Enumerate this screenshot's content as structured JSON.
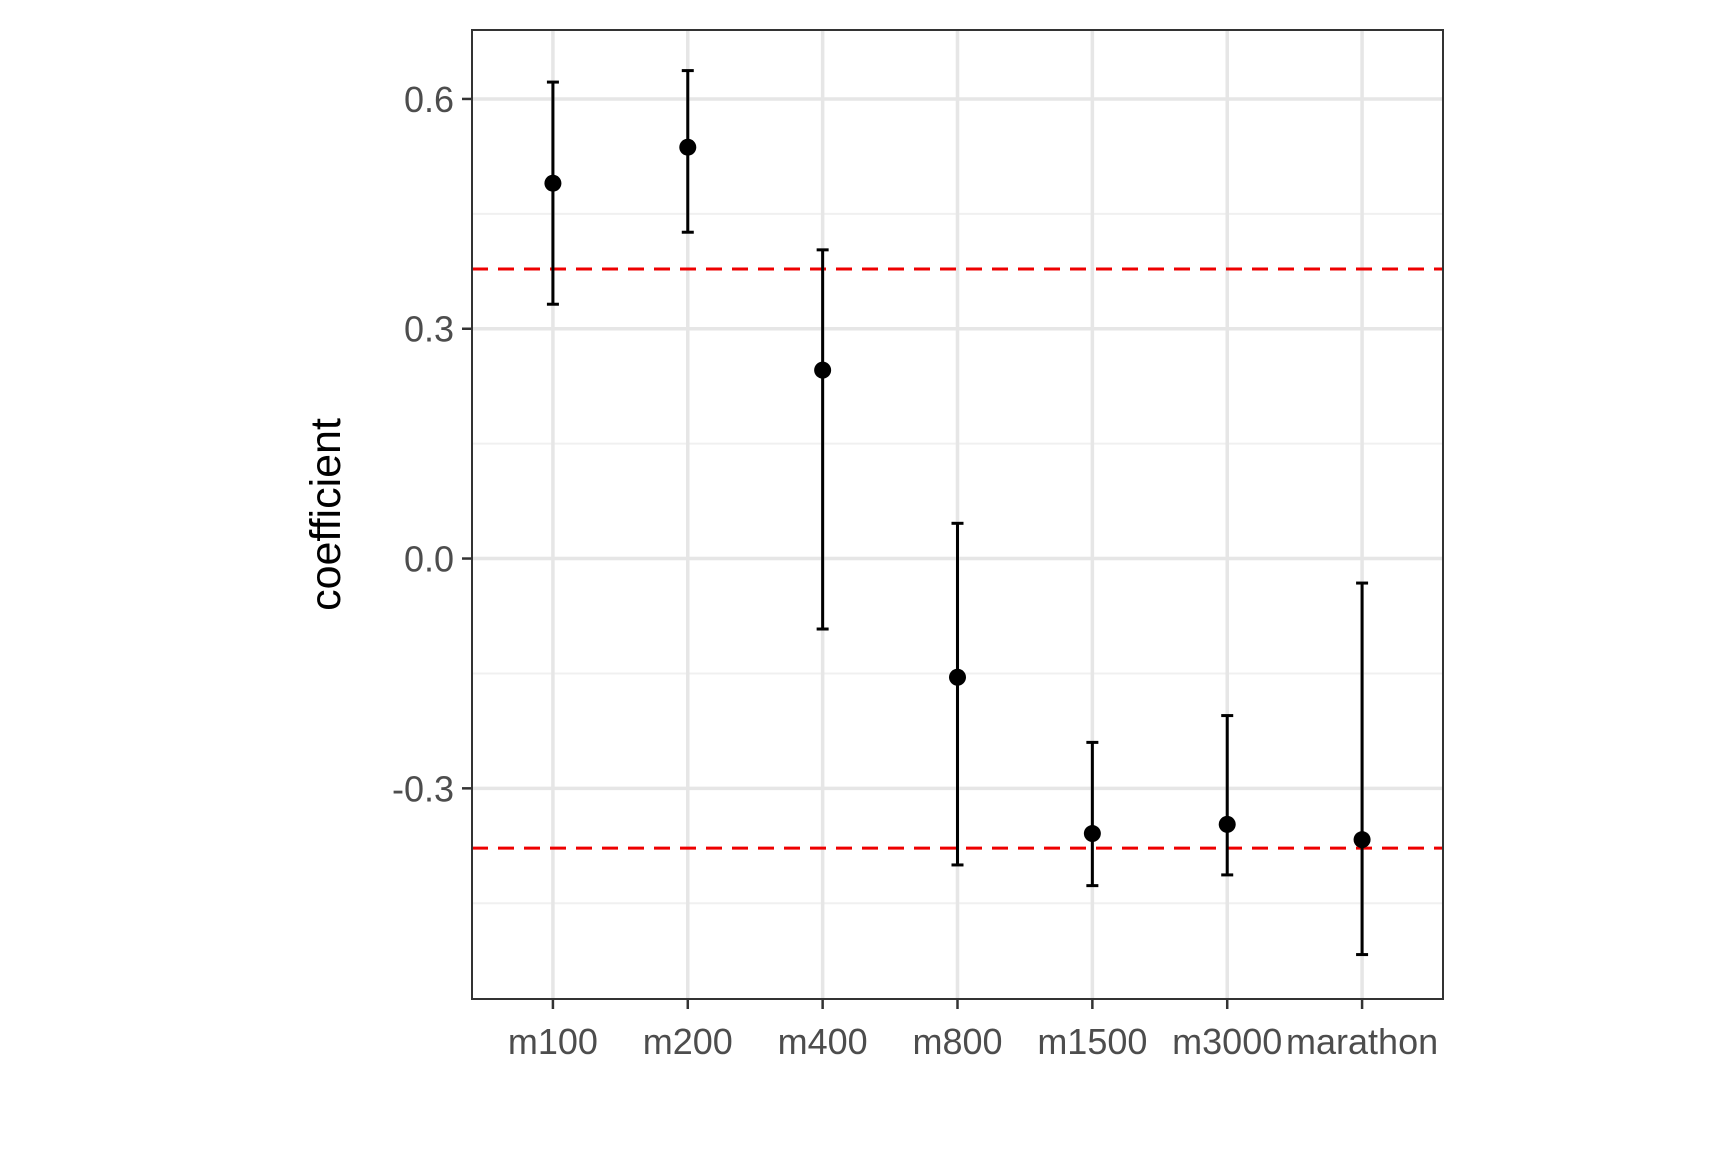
{
  "chart_data": {
    "type": "scatter",
    "subtype": "point-range",
    "title": "",
    "xlabel": "",
    "ylabel": "coefficient",
    "categories": [
      "m100",
      "m200",
      "m400",
      "m800",
      "m1500",
      "m3000",
      "marathon"
    ],
    "series": [
      {
        "estimate": [
          0.49,
          0.537,
          0.246,
          -0.155,
          -0.359,
          -0.347,
          -0.367
        ],
        "lower": [
          0.332,
          0.426,
          -0.092,
          -0.4,
          -0.427,
          -0.413,
          -0.517
        ],
        "upper": [
          0.622,
          0.637,
          0.403,
          0.046,
          -0.24,
          -0.205,
          -0.032
        ]
      }
    ],
    "reference_lines": [
      {
        "y": 0.378,
        "style": "dashed",
        "color": "#ee0000"
      },
      {
        "y": -0.378,
        "style": "dashed",
        "color": "#ee0000"
      }
    ],
    "ylim": [
      -0.575,
      0.69
    ],
    "yticks": [
      -0.3,
      0.0,
      0.3,
      0.6
    ],
    "ytick_labels": [
      "-0.3",
      "0.0",
      "0.3",
      "0.6"
    ],
    "grid": true,
    "theme": "bw",
    "colors": {
      "points": "#000000",
      "errorbars": "#000000",
      "grid_major": "#e6e6e6",
      "grid_minor": "#f0f0f0",
      "panel_border": "#333333",
      "tick_text": "#4d4d4d"
    }
  }
}
